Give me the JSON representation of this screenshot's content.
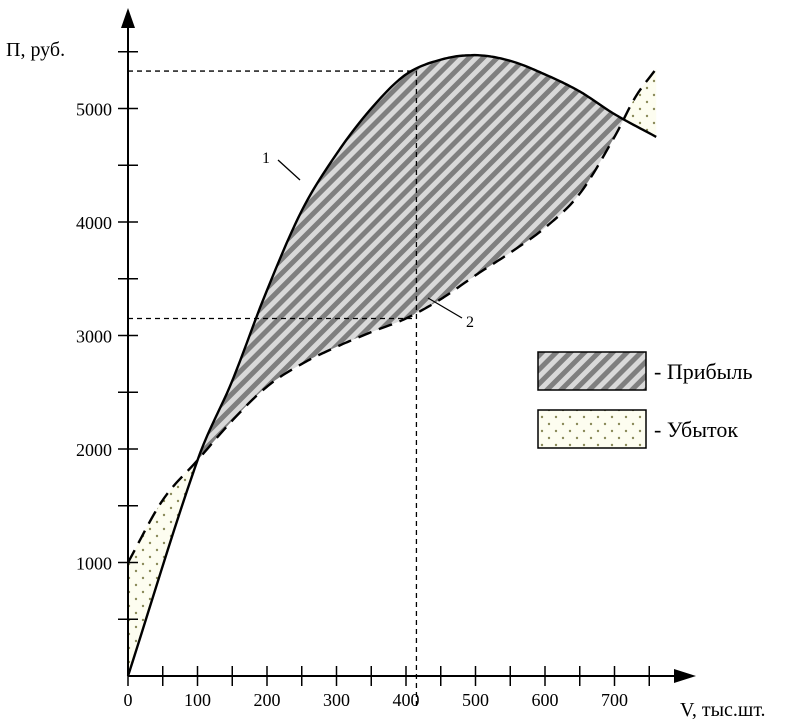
{
  "chart_data": {
    "type": "line",
    "xlabel": "V, тыс.шт.",
    "ylabel": "П, руб.",
    "x_ticks": [
      0,
      100,
      200,
      300,
      400,
      500,
      600,
      700
    ],
    "y_ticks": [
      1000,
      2000,
      3000,
      4000,
      5000
    ],
    "xlim": [
      0,
      780
    ],
    "ylim": [
      0,
      5750
    ],
    "series": [
      {
        "name": "1",
        "style": "solid",
        "x": [
          0,
          100,
          150,
          200,
          250,
          300,
          350,
          400,
          450,
          500,
          550,
          600,
          650,
          700,
          760
        ],
        "y": [
          0,
          1900,
          2600,
          3400,
          4100,
          4600,
          5000,
          5300,
          5430,
          5470,
          5420,
          5300,
          5150,
          4950,
          4750
        ]
      },
      {
        "name": "2",
        "style": "dashed",
        "x": [
          0,
          50,
          100,
          150,
          200,
          250,
          300,
          350,
          400,
          450,
          500,
          550,
          600,
          650,
          700,
          730,
          760
        ],
        "y": [
          1000,
          1550,
          1900,
          2250,
          2550,
          2750,
          2900,
          3030,
          3150,
          3320,
          3530,
          3730,
          3950,
          4250,
          4750,
          5100,
          5350
        ]
      }
    ],
    "reference_lines": {
      "x": 415,
      "y_values": [
        3150,
        5330
      ]
    },
    "legend": [
      {
        "label": "- Прибыль",
        "pattern": "hatch"
      },
      {
        "label": "- Убыток",
        "pattern": "dots"
      }
    ],
    "legend_position": "right"
  }
}
